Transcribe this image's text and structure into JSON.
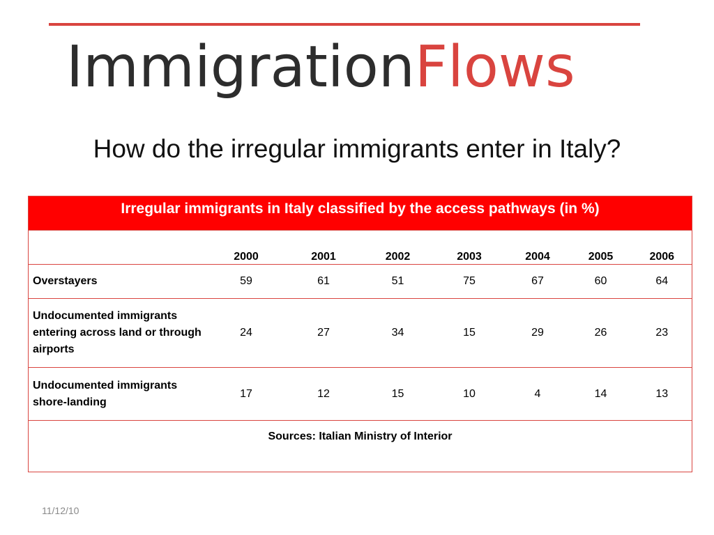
{
  "logo": {
    "part_dark": "Immigration",
    "part_red": "Flows",
    "color_dark": "#2d2d2d",
    "color_red": "#d9443f"
  },
  "subtitle": "How do the irregular immigrants enter in Italy?",
  "table": {
    "caption": "Irregular immigrants in Italy classified by the access pathways (in %)",
    "caption_bg": "#ff0000",
    "header_first": "",
    "years": [
      "2000",
      "2001",
      "2002",
      "2003",
      "2004",
      "2005",
      "2006"
    ],
    "rows": [
      {
        "label": "Overstayers",
        "values": [
          "59",
          "61",
          "51",
          "75",
          "67",
          "60",
          "64"
        ]
      },
      {
        "label": "Undocumented immigrants entering across land or through airports",
        "values": [
          "24",
          "27",
          "34",
          "15",
          "29",
          "26",
          "23"
        ]
      },
      {
        "label": "Undocumented immigrants shore-landing",
        "values": [
          "17",
          "12",
          "15",
          "10",
          "4",
          "14",
          "13"
        ]
      }
    ],
    "source": "Sources: Italian Ministry of  Interior"
  },
  "footer": {
    "date": "11/12/10"
  }
}
